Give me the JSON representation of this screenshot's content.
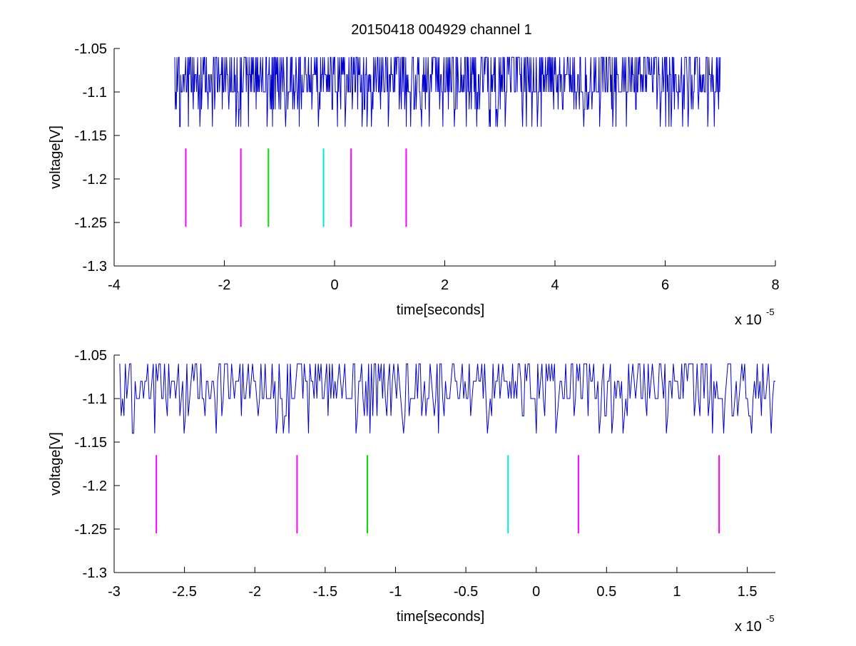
{
  "figure": {
    "title": "20150418 004929 channel 1",
    "background": "#ffffff",
    "trace_color": "#0000cc"
  },
  "chart_data": [
    {
      "type": "line",
      "title": "20150418 004929 channel 1",
      "xlabel": "time[seconds]",
      "ylabel": "voltage[V]",
      "x_exponent_label": "x 10",
      "x_exponent_power": "-5",
      "xlim": [
        -4e-05,
        8e-05
      ],
      "ylim": [
        -1.3,
        -1.05
      ],
      "x_tick_values": [
        -4e-05,
        -2e-05,
        0,
        2e-05,
        4e-05,
        6e-05,
        8e-05
      ],
      "x_tick_labels": [
        "-4",
        "-2",
        "0",
        "2",
        "4",
        "6",
        "8"
      ],
      "y_tick_values": [
        -1.3,
        -1.25,
        -1.2,
        -1.15,
        -1.1,
        -1.05
      ],
      "y_tick_labels": [
        "-1.3",
        "-1.25",
        "-1.2",
        "-1.15",
        "-1.1",
        "-1.05"
      ],
      "grid": false,
      "series": [
        {
          "kind": "trace",
          "color": "#0000cc",
          "x_start": -2.9e-05,
          "x_end": 7e-05,
          "baseline": -1.1,
          "levels": [
            -1.06,
            -1.08,
            -1.1,
            -1.12,
            -1.14
          ],
          "seed": 7,
          "n_samples": 1000
        }
      ],
      "markers": [
        {
          "x": -2.7e-05,
          "color": "#ff00ff",
          "y_top": -1.165,
          "y_bottom": -1.255
        },
        {
          "x": -1.7e-05,
          "color": "#ff00ff",
          "y_top": -1.165,
          "y_bottom": -1.255
        },
        {
          "x": -1.2e-05,
          "color": "#00dd00",
          "y_top": -1.165,
          "y_bottom": -1.255
        },
        {
          "x": -2e-06,
          "color": "#00e5e5",
          "y_top": -1.165,
          "y_bottom": -1.255
        },
        {
          "x": 3e-06,
          "color": "#ff00ff",
          "y_top": -1.165,
          "y_bottom": -1.255
        },
        {
          "x": 1.3e-05,
          "color": "#ff00ff",
          "y_top": -1.165,
          "y_bottom": -1.255
        }
      ]
    },
    {
      "type": "line",
      "title": "",
      "xlabel": "time[seconds]",
      "ylabel": "voltage[V]",
      "x_exponent_label": "x 10",
      "x_exponent_power": "-5",
      "xlim": [
        -3e-05,
        1.7e-05
      ],
      "ylim": [
        -1.3,
        -1.05
      ],
      "x_tick_values": [
        -3e-05,
        -2.5e-05,
        -2e-05,
        -1.5e-05,
        -1e-05,
        -5e-06,
        0,
        5e-06,
        1e-05,
        1.5e-05
      ],
      "x_tick_labels": [
        "-3",
        "-2.5",
        "-2",
        "-1.5",
        "-1",
        "-0.5",
        "0",
        "0.5",
        "1",
        "1.5"
      ],
      "y_tick_values": [
        -1.3,
        -1.25,
        -1.2,
        -1.15,
        -1.1,
        -1.05
      ],
      "y_tick_labels": [
        "-1.3",
        "-1.25",
        "-1.2",
        "-1.15",
        "-1.1",
        "-1.05"
      ],
      "grid": false,
      "series": [
        {
          "kind": "trace",
          "color": "#0000cc",
          "x_start": -2.96e-05,
          "x_end": 1.7e-05,
          "baseline": -1.1,
          "levels": [
            -1.06,
            -1.08,
            -1.1,
            -1.12,
            -1.14
          ],
          "seed": 7,
          "n_samples": 470
        }
      ],
      "markers": [
        {
          "x": -2.7e-05,
          "color": "#ff00ff",
          "y_top": -1.165,
          "y_bottom": -1.255
        },
        {
          "x": -1.7e-05,
          "color": "#ff00ff",
          "y_top": -1.165,
          "y_bottom": -1.255
        },
        {
          "x": -1.2e-05,
          "color": "#00dd00",
          "y_top": -1.165,
          "y_bottom": -1.255
        },
        {
          "x": -2e-06,
          "color": "#00e5e5",
          "y_top": -1.165,
          "y_bottom": -1.255
        },
        {
          "x": 3e-06,
          "color": "#ff00ff",
          "y_top": -1.165,
          "y_bottom": -1.255
        },
        {
          "x": 1.3e-05,
          "color": "#ff00ff",
          "y_top": -1.165,
          "y_bottom": -1.255
        }
      ]
    }
  ]
}
